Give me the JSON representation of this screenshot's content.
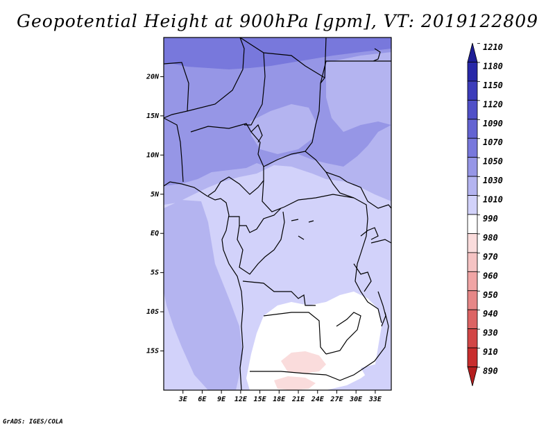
{
  "title": "Geopotential Height at 900hPa [gpm], VT: 2019122809",
  "footer": "GrADS: IGES/COLA",
  "map": {
    "lon_range": [
      0,
      35.5
    ],
    "lat_range": [
      -20,
      25
    ],
    "lat_ticks": [
      {
        "value": 20,
        "label": "20N"
      },
      {
        "value": 15,
        "label": "15N"
      },
      {
        "value": 10,
        "label": "10N"
      },
      {
        "value": 5,
        "label": "5N"
      },
      {
        "value": 0,
        "label": "EQ"
      },
      {
        "value": -5,
        "label": "5S"
      },
      {
        "value": -10,
        "label": "10S"
      },
      {
        "value": -15,
        "label": "15S"
      }
    ],
    "lon_ticks": [
      {
        "value": 3,
        "label": "3E"
      },
      {
        "value": 6,
        "label": "6E"
      },
      {
        "value": 9,
        "label": "9E"
      },
      {
        "value": 12,
        "label": "12E"
      },
      {
        "value": 15,
        "label": "15E"
      },
      {
        "value": 18,
        "label": "18E"
      },
      {
        "value": 21,
        "label": "21E"
      },
      {
        "value": 24,
        "label": "24E"
      },
      {
        "value": 27,
        "label": "27E"
      },
      {
        "value": 30,
        "label": "30E"
      },
      {
        "value": 33,
        "label": "33E"
      }
    ]
  },
  "colorbar": {
    "levels": [
      "1210",
      "1180",
      "1150",
      "1120",
      "1090",
      "1070",
      "1050",
      "1030",
      "1010",
      "990",
      "980",
      "970",
      "960",
      "950",
      "940",
      "930",
      "910",
      "890"
    ],
    "colors": [
      "#1e1e96",
      "#2828a8",
      "#3c3cba",
      "#5050c8",
      "#6464d2",
      "#7878dc",
      "#9696e6",
      "#b4b4f0",
      "#d2d2fa",
      "#ffffff",
      "#fadcdc",
      "#f5c3c3",
      "#f0a5a5",
      "#e68787",
      "#dc6464",
      "#d24646",
      "#c82d2d",
      "#b41e1e"
    ]
  },
  "colors": {
    "fill_1030": "#b4b4f0",
    "fill_1050": "#9696e6",
    "fill_1010": "#d2d2fa",
    "fill_990": "#ffffff",
    "fill_980": "#fadcdc",
    "border": "#000000"
  }
}
